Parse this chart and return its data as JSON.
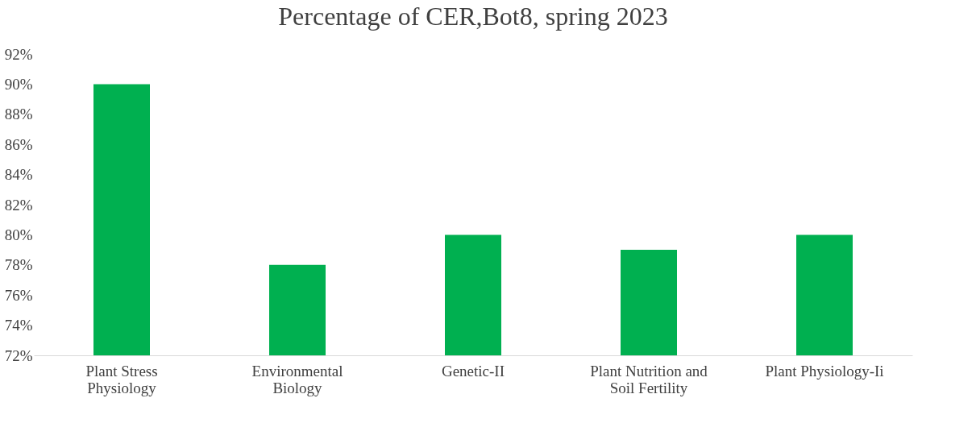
{
  "chart_data": {
    "type": "bar",
    "title": "Percentage of CER,Bot8, spring 2023",
    "categories": [
      "Plant Stress Physiology",
      "Environmental Biology",
      "Genetic-II",
      "Plant Nutrition and Soil Fertility",
      "Plant Physiology-Ii"
    ],
    "values": [
      90,
      78,
      80,
      79,
      80
    ],
    "color": "#00b050",
    "ylim": [
      72,
      92
    ],
    "yticks": [
      {
        "value": 72,
        "label": "72%"
      },
      {
        "value": 74,
        "label": "74%"
      },
      {
        "value": 76,
        "label": "76%"
      },
      {
        "value": 78,
        "label": "78%"
      },
      {
        "value": 80,
        "label": "80%"
      },
      {
        "value": 82,
        "label": "82%"
      },
      {
        "value": 84,
        "label": "84%"
      },
      {
        "value": 86,
        "label": "86%"
      },
      {
        "value": 88,
        "label": "88%"
      },
      {
        "value": 90,
        "label": "90%"
      },
      {
        "value": 92,
        "label": "92%"
      }
    ],
    "grid": false
  }
}
